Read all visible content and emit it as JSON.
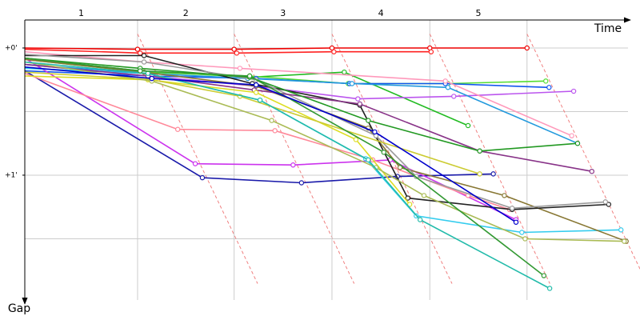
{
  "chart_data": {
    "type": "line",
    "x_label": "Time",
    "y_label": "Gap",
    "lap_labels": [
      "1",
      "2",
      "3",
      "4",
      "5"
    ],
    "lap_times": [
      1.74,
      3.23,
      4.74,
      6.25,
      7.75
    ],
    "xlim": [
      0,
      9.37
    ],
    "ylim": [
      -0.22,
      1.95
    ],
    "yticks": [
      {
        "value": 0,
        "label": "+0'"
      },
      {
        "value": 1,
        "label": "+1'"
      }
    ],
    "y_gridlines": [
      0,
      0.5,
      1,
      1.5
    ],
    "series": [
      {
        "color": "#ee0000",
        "x": [
          0,
          1.74,
          3.23,
          4.74,
          6.25,
          7.75
        ],
        "values": [
          0,
          0.01,
          0.01,
          0,
          0,
          0
        ]
      },
      {
        "color": "#ff2222",
        "x": [
          0,
          1.78,
          3.27,
          4.77,
          6.27
        ],
        "values": [
          0.01,
          0.04,
          0.04,
          0.03,
          0.03
        ]
      },
      {
        "color": "#22bb22",
        "x": [
          0,
          1.78,
          3.47,
          4.93,
          6.84
        ],
        "values": [
          0.08,
          0.18,
          0.23,
          0.19,
          0.61
        ]
      },
      {
        "color": "#55dd33",
        "x": [
          0,
          1.84,
          3.47,
          4.99,
          6.53,
          8.04
        ],
        "values": [
          0.09,
          0.19,
          0.22,
          0.28,
          0.28,
          0.26
        ]
      },
      {
        "color": "#1155ee",
        "x": [
          0,
          1.96,
          3.57,
          5.01,
          6.49,
          8.09
        ],
        "values": [
          0.18,
          0.22,
          0.24,
          0.28,
          0.28,
          0.31
        ]
      },
      {
        "color": "#1a1aaa",
        "x": [
          0,
          2.74,
          4.27,
          5.75,
          7.23
        ],
        "values": [
          0.18,
          1.02,
          1.06,
          1.01,
          0.99
        ]
      },
      {
        "color": "#bb55ee",
        "x": [
          0,
          1.9,
          3.57,
          5.14,
          6.62,
          8.47
        ],
        "values": [
          0.13,
          0.22,
          0.3,
          0.4,
          0.38,
          0.34
        ]
      },
      {
        "color": "#cc33ee",
        "x": [
          0,
          2.63,
          4.14,
          5.64,
          7.58
        ],
        "values": [
          0.08,
          0.91,
          0.92,
          0.88,
          1.35
        ]
      },
      {
        "color": "#ff8899",
        "x": [
          0,
          2.36,
          3.86,
          5.37,
          6.84,
          7.48
        ],
        "values": [
          0.2,
          0.64,
          0.65,
          0.88,
          1.16,
          1.27
        ]
      },
      {
        "color": "#ff99bb",
        "x": [
          0,
          1.84,
          3.32,
          6.49,
          8.44
        ],
        "values": [
          0.03,
          0.11,
          0.16,
          0.26,
          0.69
        ]
      },
      {
        "color": "#33ccee",
        "x": [
          0,
          1.9,
          3.63,
          5.26,
          6.04,
          7.67,
          9.2
        ],
        "values": [
          0.16,
          0.2,
          0.41,
          0.87,
          1.32,
          1.45,
          1.43
        ]
      },
      {
        "color": "#2299dd",
        "x": [
          0,
          1.9,
          3.44,
          5.05,
          6.53,
          8.53
        ],
        "values": [
          0.13,
          0.2,
          0.24,
          0.28,
          0.31,
          0.75
        ]
      },
      {
        "color": "#887733",
        "x": [
          0,
          1.84,
          3.57,
          5.3,
          5.79,
          7.4,
          9.28
        ],
        "values": [
          0.09,
          0.19,
          0.3,
          0.63,
          0.94,
          1.16,
          1.52
        ]
      },
      {
        "color": "#222222",
        "x": [
          0,
          1.84,
          3.51,
          5.17,
          5.91,
          7.52,
          9.01
        ],
        "values": [
          0.06,
          0.06,
          0.28,
          0.45,
          1.18,
          1.27,
          1.23
        ]
      },
      {
        "color": "#999999",
        "x": [
          0,
          1.84,
          3.57,
          5.42,
          6.04,
          7.52,
          8.96
        ],
        "values": [
          0.05,
          0.11,
          0.25,
          0.69,
          1.01,
          1.26,
          1.21
        ]
      },
      {
        "color": "#883388",
        "x": [
          0,
          1.9,
          3.54,
          5.17,
          7.02,
          8.75
        ],
        "values": [
          0.13,
          0.22,
          0.33,
          0.44,
          0.81,
          0.97
        ]
      },
      {
        "color": "#dddd22",
        "x": [
          0,
          1.9,
          3.57,
          5.11,
          5.94
        ],
        "values": [
          0.22,
          0.25,
          0.35,
          0.72,
          1.23
        ]
      },
      {
        "color": "#cccc33",
        "x": [
          0,
          1.96,
          3.32,
          7.02
        ],
        "values": [
          0.19,
          0.25,
          0.38,
          0.99
        ]
      },
      {
        "color": "#aabb55",
        "x": [
          0,
          1.96,
          3.81,
          5.42,
          6.16,
          7.72,
          9.25
        ],
        "values": [
          0.11,
          0.26,
          0.57,
          0.94,
          1.16,
          1.5,
          1.52
        ]
      },
      {
        "color": "#229922",
        "x": [
          0,
          1.78,
          3.47,
          5.3,
          7.02,
          8.53
        ],
        "values": [
          0.08,
          0.16,
          0.23,
          0.57,
          0.81,
          0.75
        ]
      },
      {
        "color": "#22bbaa",
        "x": [
          0,
          1.9,
          3.63,
          5.3,
          6.1,
          8.1
        ],
        "values": [
          0.11,
          0.2,
          0.41,
          0.88,
          1.35,
          1.89
        ]
      },
      {
        "color": "#339933",
        "x": [
          0,
          1.78,
          3.47,
          5.54,
          8.01
        ],
        "values": [
          0.08,
          0.18,
          0.22,
          0.82,
          1.79
        ]
      },
      {
        "color": "#0000cc",
        "x": [
          0,
          1.96,
          3.57,
          5.4,
          7.58
        ],
        "values": [
          0.15,
          0.24,
          0.29,
          0.66,
          1.37
        ]
      }
    ]
  }
}
